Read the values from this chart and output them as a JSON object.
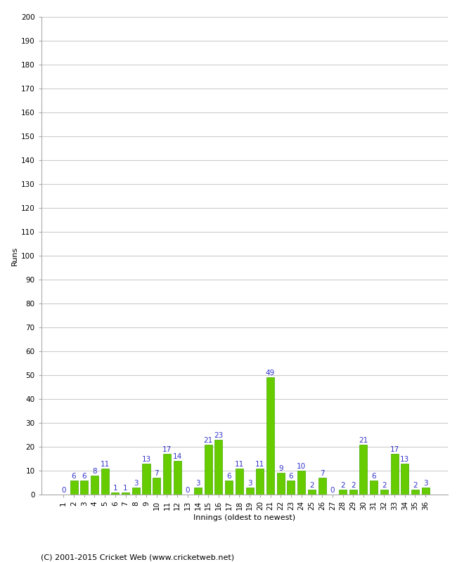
{
  "innings": [
    1,
    2,
    3,
    4,
    5,
    6,
    7,
    8,
    9,
    10,
    11,
    12,
    13,
    14,
    15,
    16,
    17,
    18,
    19,
    20,
    21,
    22,
    23,
    24,
    25,
    26,
    27,
    28,
    29,
    30,
    31,
    32,
    33,
    34,
    35,
    36
  ],
  "values": [
    0,
    6,
    6,
    8,
    11,
    1,
    1,
    3,
    13,
    7,
    17,
    14,
    0,
    3,
    21,
    23,
    6,
    11,
    3,
    11,
    49,
    9,
    6,
    10,
    2,
    7,
    0,
    2,
    2,
    21,
    6,
    2,
    17,
    13,
    2,
    3
  ],
  "bar_color": "#66cc00",
  "bar_edge_color": "#44aa00",
  "label_color": "#3333cc",
  "ylabel": "Runs",
  "xlabel": "Innings (oldest to newest)",
  "ylim": [
    0,
    200
  ],
  "yticks": [
    0,
    10,
    20,
    30,
    40,
    50,
    60,
    70,
    80,
    90,
    100,
    110,
    120,
    130,
    140,
    150,
    160,
    170,
    180,
    190,
    200
  ],
  "background_color": "#ffffff",
  "grid_color": "#cccccc",
  "footer": "(C) 2001-2015 Cricket Web (www.cricketweb.net)",
  "label_fontsize": 7.5,
  "axis_fontsize": 8,
  "tick_fontsize": 7.5,
  "footer_fontsize": 8
}
